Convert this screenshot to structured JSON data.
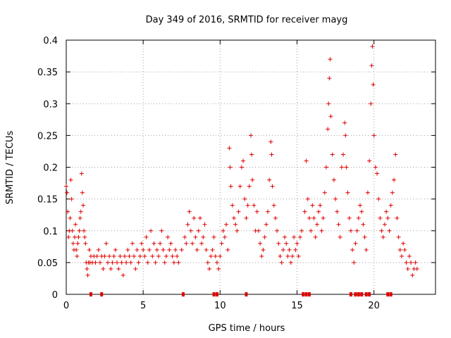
{
  "chart_data": {
    "type": "scatter",
    "title": "Day 349 of 2016, SRMTID for receiver mayg",
    "xlabel": "GPS time / hours",
    "ylabel": "SRMTID / TECUs",
    "xlim": [
      0,
      24
    ],
    "ylim": [
      0,
      0.4
    ],
    "x_ticks": [
      0,
      5,
      10,
      15,
      20
    ],
    "y_ticks": [
      0,
      0.05,
      0.1,
      0.15,
      0.2,
      0.25,
      0.3,
      0.35,
      0.4
    ],
    "marker": "+",
    "color": "#e00000",
    "grid": true,
    "series": [
      {
        "name": "SRMTID",
        "points": [
          [
            0.0,
            0.17
          ],
          [
            0.05,
            0.16
          ],
          [
            0.1,
            0.13
          ],
          [
            0.15,
            0.09
          ],
          [
            0.2,
            0.1
          ],
          [
            0.25,
            0.12
          ],
          [
            0.3,
            0.18
          ],
          [
            0.35,
            0.15
          ],
          [
            0.4,
            0.1
          ],
          [
            0.45,
            0.08
          ],
          [
            0.5,
            0.07
          ],
          [
            0.55,
            0.09
          ],
          [
            0.6,
            0.11
          ],
          [
            0.65,
            0.07
          ],
          [
            0.7,
            0.06
          ],
          [
            0.75,
            0.08
          ],
          [
            0.8,
            0.09
          ],
          [
            0.85,
            0.1
          ],
          [
            0.9,
            0.12
          ],
          [
            0.95,
            0.13
          ],
          [
            1.0,
            0.19
          ],
          [
            1.05,
            0.16
          ],
          [
            1.1,
            0.14
          ],
          [
            1.15,
            0.1
          ],
          [
            1.2,
            0.09
          ],
          [
            1.25,
            0.08
          ],
          [
            1.3,
            0.05
          ],
          [
            1.35,
            0.04
          ],
          [
            1.4,
            0.03
          ],
          [
            1.45,
            0.05
          ],
          [
            1.5,
            0.07
          ],
          [
            1.55,
            0.05
          ],
          [
            1.6,
            0.06
          ],
          [
            1.7,
            0.05
          ],
          [
            1.8,
            0.06
          ],
          [
            1.9,
            0.05
          ],
          [
            2.0,
            0.06
          ],
          [
            2.1,
            0.07
          ],
          [
            2.2,
            0.05
          ],
          [
            2.3,
            0.06
          ],
          [
            2.4,
            0.04
          ],
          [
            2.5,
            0.06
          ],
          [
            2.6,
            0.08
          ],
          [
            2.7,
            0.05
          ],
          [
            2.8,
            0.06
          ],
          [
            2.9,
            0.04
          ],
          [
            3.0,
            0.05
          ],
          [
            3.1,
            0.06
          ],
          [
            3.2,
            0.07
          ],
          [
            3.3,
            0.05
          ],
          [
            3.4,
            0.04
          ],
          [
            3.5,
            0.06
          ],
          [
            3.6,
            0.05
          ],
          [
            3.7,
            0.03
          ],
          [
            3.8,
            0.06
          ],
          [
            3.9,
            0.05
          ],
          [
            4.0,
            0.07
          ],
          [
            4.1,
            0.06
          ],
          [
            4.2,
            0.05
          ],
          [
            4.3,
            0.08
          ],
          [
            4.4,
            0.06
          ],
          [
            4.5,
            0.04
          ],
          [
            4.6,
            0.07
          ],
          [
            4.7,
            0.05
          ],
          [
            4.8,
            0.06
          ],
          [
            4.9,
            0.08
          ],
          [
            5.0,
            0.07
          ],
          [
            5.1,
            0.06
          ],
          [
            5.2,
            0.09
          ],
          [
            5.3,
            0.05
          ],
          [
            5.4,
            0.07
          ],
          [
            5.5,
            0.1
          ],
          [
            5.6,
            0.06
          ],
          [
            5.7,
            0.08
          ],
          [
            5.8,
            0.05
          ],
          [
            5.9,
            0.07
          ],
          [
            6.0,
            0.06
          ],
          [
            6.1,
            0.08
          ],
          [
            6.2,
            0.1
          ],
          [
            6.3,
            0.07
          ],
          [
            6.4,
            0.05
          ],
          [
            6.5,
            0.06
          ],
          [
            6.6,
            0.09
          ],
          [
            6.7,
            0.07
          ],
          [
            6.8,
            0.08
          ],
          [
            6.9,
            0.06
          ],
          [
            7.0,
            0.05
          ],
          [
            7.1,
            0.07
          ],
          [
            7.2,
            0.06
          ],
          [
            7.3,
            0.05
          ],
          [
            7.5,
            0.07
          ],
          [
            7.7,
            0.09
          ],
          [
            7.8,
            0.08
          ],
          [
            7.9,
            0.11
          ],
          [
            8.0,
            0.13
          ],
          [
            8.1,
            0.1
          ],
          [
            8.2,
            0.08
          ],
          [
            8.3,
            0.12
          ],
          [
            8.4,
            0.09
          ],
          [
            8.5,
            0.07
          ],
          [
            8.6,
            0.1
          ],
          [
            8.7,
            0.12
          ],
          [
            8.8,
            0.08
          ],
          [
            8.9,
            0.09
          ],
          [
            9.0,
            0.11
          ],
          [
            9.1,
            0.07
          ],
          [
            9.2,
            0.05
          ],
          [
            9.3,
            0.04
          ],
          [
            9.4,
            0.06
          ],
          [
            9.5,
            0.07
          ],
          [
            9.6,
            0.09
          ],
          [
            9.7,
            0.06
          ],
          [
            9.8,
            0.05
          ],
          [
            9.9,
            0.04
          ],
          [
            10.0,
            0.06
          ],
          [
            10.1,
            0.08
          ],
          [
            10.2,
            0.1
          ],
          [
            10.3,
            0.09
          ],
          [
            10.4,
            0.11
          ],
          [
            10.5,
            0.07
          ],
          [
            10.6,
            0.23
          ],
          [
            10.65,
            0.2
          ],
          [
            10.7,
            0.17
          ],
          [
            10.8,
            0.14
          ],
          [
            10.9,
            0.12
          ],
          [
            11.0,
            0.11
          ],
          [
            11.1,
            0.1
          ],
          [
            11.2,
            0.13
          ],
          [
            11.3,
            0.17
          ],
          [
            11.4,
            0.2
          ],
          [
            11.5,
            0.21
          ],
          [
            11.6,
            0.15
          ],
          [
            11.7,
            0.12
          ],
          [
            11.8,
            0.14
          ],
          [
            11.9,
            0.17
          ],
          [
            12.0,
            0.25
          ],
          [
            12.05,
            0.22
          ],
          [
            12.1,
            0.18
          ],
          [
            12.2,
            0.14
          ],
          [
            12.3,
            0.1
          ],
          [
            12.4,
            0.13
          ],
          [
            12.5,
            0.1
          ],
          [
            12.6,
            0.08
          ],
          [
            12.7,
            0.06
          ],
          [
            12.8,
            0.07
          ],
          [
            12.9,
            0.09
          ],
          [
            13.0,
            0.11
          ],
          [
            13.1,
            0.13
          ],
          [
            13.2,
            0.18
          ],
          [
            13.3,
            0.24
          ],
          [
            13.35,
            0.22
          ],
          [
            13.4,
            0.17
          ],
          [
            13.5,
            0.14
          ],
          [
            13.6,
            0.12
          ],
          [
            13.7,
            0.1
          ],
          [
            13.8,
            0.08
          ],
          [
            13.9,
            0.06
          ],
          [
            14.0,
            0.05
          ],
          [
            14.1,
            0.07
          ],
          [
            14.2,
            0.09
          ],
          [
            14.3,
            0.08
          ],
          [
            14.4,
            0.06
          ],
          [
            14.5,
            0.07
          ],
          [
            14.6,
            0.05
          ],
          [
            14.7,
            0.06
          ],
          [
            14.8,
            0.09
          ],
          [
            14.9,
            0.07
          ],
          [
            15.0,
            0.08
          ],
          [
            15.1,
            0.06
          ],
          [
            15.2,
            0.09
          ],
          [
            15.3,
            0.1
          ],
          [
            15.5,
            0.13
          ],
          [
            15.6,
            0.21
          ],
          [
            15.7,
            0.15
          ],
          [
            15.8,
            0.12
          ],
          [
            15.9,
            0.1
          ],
          [
            16.0,
            0.14
          ],
          [
            16.1,
            0.12
          ],
          [
            16.2,
            0.09
          ],
          [
            16.3,
            0.11
          ],
          [
            16.4,
            0.13
          ],
          [
            16.5,
            0.14
          ],
          [
            16.6,
            0.1
          ],
          [
            16.7,
            0.12
          ],
          [
            16.8,
            0.16
          ],
          [
            16.9,
            0.2
          ],
          [
            17.0,
            0.26
          ],
          [
            17.05,
            0.3
          ],
          [
            17.1,
            0.34
          ],
          [
            17.15,
            0.37
          ],
          [
            17.2,
            0.28
          ],
          [
            17.3,
            0.22
          ],
          [
            17.4,
            0.18
          ],
          [
            17.5,
            0.15
          ],
          [
            17.6,
            0.13
          ],
          [
            17.7,
            0.11
          ],
          [
            17.8,
            0.09
          ],
          [
            17.9,
            0.2
          ],
          [
            18.0,
            0.22
          ],
          [
            18.1,
            0.27
          ],
          [
            18.15,
            0.25
          ],
          [
            18.2,
            0.2
          ],
          [
            18.3,
            0.16
          ],
          [
            18.4,
            0.12
          ],
          [
            18.5,
            0.1
          ],
          [
            18.6,
            0.07
          ],
          [
            18.7,
            0.05
          ],
          [
            18.8,
            0.08
          ],
          [
            18.9,
            0.1
          ],
          [
            19.0,
            0.12
          ],
          [
            19.1,
            0.14
          ],
          [
            19.2,
            0.13
          ],
          [
            19.3,
            0.11
          ],
          [
            19.4,
            0.09
          ],
          [
            19.5,
            0.07
          ],
          [
            19.6,
            0.16
          ],
          [
            19.7,
            0.21
          ],
          [
            19.8,
            0.3
          ],
          [
            19.85,
            0.36
          ],
          [
            19.9,
            0.39
          ],
          [
            19.95,
            0.33
          ],
          [
            20.0,
            0.25
          ],
          [
            20.1,
            0.2
          ],
          [
            20.2,
            0.19
          ],
          [
            20.3,
            0.15
          ],
          [
            20.4,
            0.12
          ],
          [
            20.5,
            0.1
          ],
          [
            20.6,
            0.09
          ],
          [
            20.7,
            0.11
          ],
          [
            20.8,
            0.13
          ],
          [
            20.9,
            0.12
          ],
          [
            21.0,
            0.1
          ],
          [
            21.1,
            0.14
          ],
          [
            21.2,
            0.16
          ],
          [
            21.3,
            0.18
          ],
          [
            21.4,
            0.22
          ],
          [
            21.5,
            0.12
          ],
          [
            21.6,
            0.09
          ],
          [
            21.7,
            0.07
          ],
          [
            21.8,
            0.06
          ],
          [
            21.9,
            0.08
          ],
          [
            22.0,
            0.07
          ],
          [
            22.1,
            0.05
          ],
          [
            22.2,
            0.04
          ],
          [
            22.3,
            0.06
          ],
          [
            22.4,
            0.05
          ],
          [
            22.5,
            0.03
          ],
          [
            22.6,
            0.04
          ],
          [
            22.7,
            0.05
          ],
          [
            22.8,
            0.04
          ]
        ]
      }
    ],
    "zero_markers": [
      1.6,
      2.3,
      7.6,
      9.6,
      9.8,
      11.7,
      15.4,
      15.6,
      15.8,
      18.5,
      18.8,
      19.0,
      19.2,
      19.5,
      19.7,
      20.9,
      21.1
    ]
  }
}
